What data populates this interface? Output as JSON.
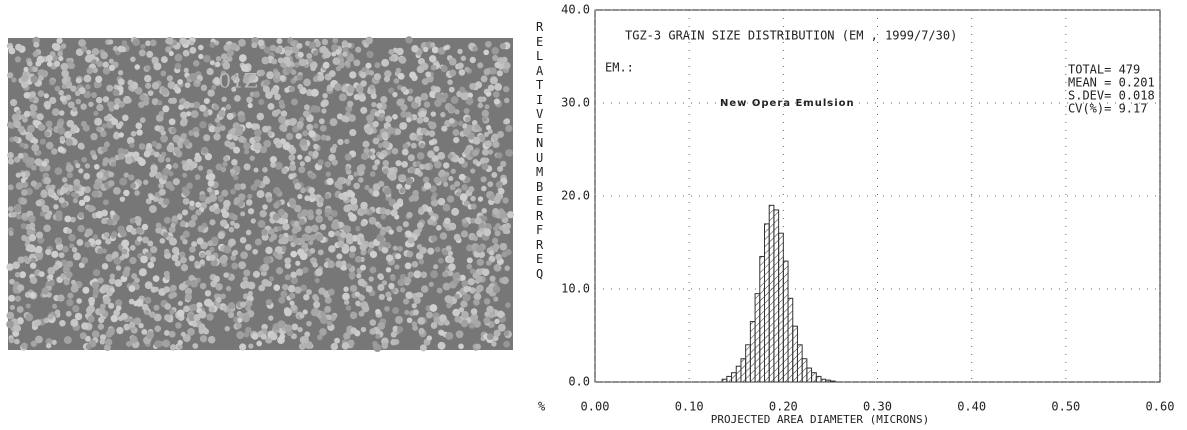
{
  "image_label": "01Z",
  "chart_data": {
    "type": "histogram",
    "title": "TGZ-3 GRAIN SIZE DISTRIBUTION (EM , 1999/7/30)",
    "annotations": [
      "EM.:",
      "New Opera Emulsion"
    ],
    "stats": [
      "TOTAL= 479",
      "MEAN = 0.201",
      "S.DEV= 0.018",
      "CV(%)= 9.17"
    ],
    "x_label": "PROJECTED AREA DIAMETER (MICRONS)",
    "y_label": "RELATIVE NUMBER FREQ",
    "y_unit": "%",
    "color": "#333333",
    "bins": [
      0.135,
      0.14,
      0.145,
      0.15,
      0.155,
      0.16,
      0.165,
      0.17,
      0.175,
      0.18,
      0.185,
      0.19,
      0.195,
      0.2,
      0.205,
      0.21,
      0.215,
      0.22,
      0.225,
      0.23,
      0.235,
      0.24,
      0.245,
      0.25,
      0.255
    ],
    "values": [
      0.3,
      0.6,
      1.0,
      1.7,
      2.5,
      4.0,
      6.5,
      9.5,
      13.5,
      17.0,
      19.0,
      18.5,
      16.0,
      13.0,
      9.0,
      6.0,
      4.0,
      2.5,
      1.5,
      1.0,
      0.6,
      0.3,
      0.2,
      0.1
    ],
    "xlim": [
      0,
      0.6
    ],
    "xticks": [
      {
        "value": 0,
        "label": "0.00"
      },
      {
        "value": 0.1,
        "label": "0.10"
      },
      {
        "value": 0.2,
        "label": "0.20"
      },
      {
        "value": 0.3,
        "label": "0.30"
      },
      {
        "value": 0.4,
        "label": "0.40"
      },
      {
        "value": 0.5,
        "label": "0.50"
      },
      {
        "value": 0.6,
        "label": "0.60"
      }
    ],
    "ylim": [
      0,
      40
    ],
    "yticks": [
      {
        "value": 0,
        "label": "0.0"
      },
      {
        "value": 10,
        "label": "10.0"
      },
      {
        "value": 20,
        "label": "20.0"
      },
      {
        "value": 30,
        "label": "30.0"
      },
      {
        "value": 40,
        "label": "40.0"
      }
    ],
    "grid": true
  }
}
